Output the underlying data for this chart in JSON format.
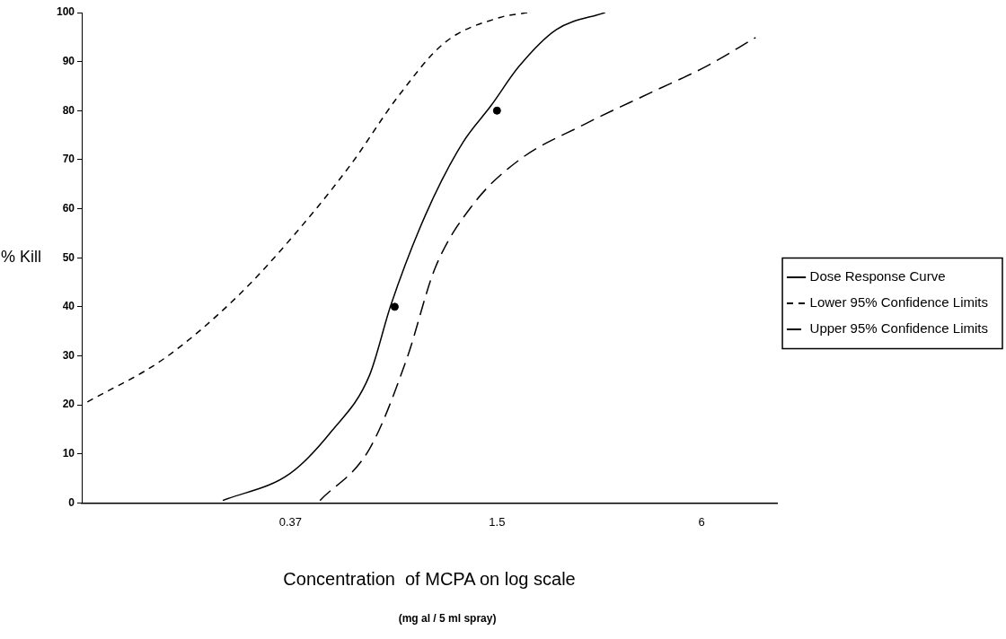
{
  "chart_data": {
    "type": "line",
    "xlabel": "Concentration  of MCPA on log scale",
    "ylabel": "% Kill",
    "annotations": [
      "(mg al / 5 ml spray)"
    ],
    "log": "x",
    "xlim": [
      0.09,
      10
    ],
    "xticks": [
      0.37,
      1.5,
      6
    ],
    "ylim": [
      0,
      100
    ],
    "yticks": [
      0,
      10,
      20,
      30,
      40,
      50,
      60,
      70,
      80,
      90,
      100
    ],
    "grid": false,
    "legend": "right",
    "marker": "none",
    "series": [
      {
        "name": "Dose Response Curve",
        "color": "#000000",
        "line_style": "solid",
        "x": [
          0.234,
          0.369,
          0.49,
          0.632,
          0.731,
          0.925,
          1.19,
          1.44,
          1.74,
          2.24,
          3.12
        ],
        "values": [
          0.5,
          6,
          14.7,
          26,
          40.4,
          58.8,
          73.5,
          81,
          89,
          96.5,
          100
        ]
      },
      {
        "name": "Lower 95% Confidence Limits",
        "color": "#000000",
        "line_style": "dashed",
        "x": [
          0.0935,
          0.157,
          0.26,
          0.381,
          0.557,
          0.764,
          1.05,
          1.53,
          1.85
        ],
        "values": [
          20.6,
          29.4,
          42.3,
          54.8,
          69,
          82.7,
          93.8,
          99,
          100
        ]
      },
      {
        "name": "Upper 95% Confidence Limits",
        "color": "#000000",
        "line_style": "dashed",
        "x": [
          0.452,
          0.632,
          0.814,
          0.985,
          1.27,
          1.74,
          2.71,
          4.23,
          6.18,
          8.65
        ],
        "values": [
          0.5,
          11,
          29.4,
          47.8,
          60.7,
          69.9,
          77.2,
          83.6,
          89,
          94.9
        ]
      },
      {
        "type": "scatter",
        "color": "#000000",
        "marker": "circle",
        "x": [
          0.75,
          1.5
        ],
        "values": [
          40,
          80
        ]
      }
    ]
  }
}
